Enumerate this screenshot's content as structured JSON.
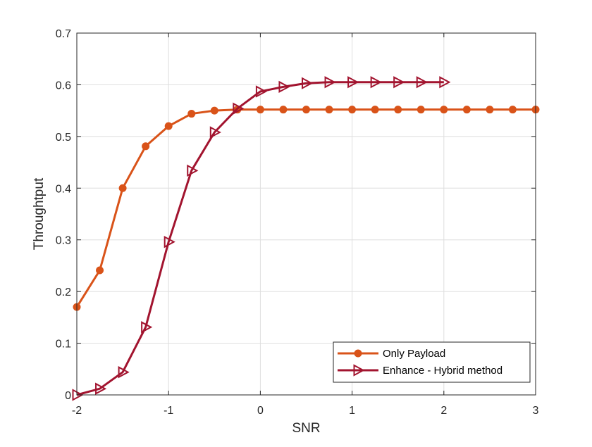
{
  "chart_data": {
    "type": "line",
    "title": "",
    "xlabel": "SNR",
    "ylabel": "Throughtput",
    "xlim": [
      -2,
      3
    ],
    "ylim": [
      0,
      0.7
    ],
    "xticks": [
      -2,
      -1,
      0,
      1,
      2,
      3
    ],
    "xtick_labels": [
      "-2",
      "-1",
      "0",
      "1",
      "2",
      "3"
    ],
    "yticks": [
      0,
      0.1,
      0.2,
      0.3,
      0.4,
      0.5,
      0.6,
      0.7
    ],
    "ytick_labels": [
      "0",
      "0.1",
      "0.2",
      "0.3",
      "0.4",
      "0.5",
      "0.6",
      "0.7"
    ],
    "grid": true,
    "legend_position": "bottom-right",
    "series": [
      {
        "name": "Only Payload",
        "color": "#D95319",
        "marker": "circle",
        "x": [
          -2,
          -1.75,
          -1.5,
          -1.25,
          -1,
          -0.75,
          -0.5,
          -0.25,
          0,
          0.25,
          0.5,
          0.75,
          1,
          1.25,
          1.5,
          1.75,
          2,
          2.25,
          2.5,
          2.75,
          3
        ],
        "y": [
          0.17,
          0.241,
          0.4,
          0.481,
          0.52,
          0.544,
          0.55,
          0.552,
          0.552,
          0.552,
          0.552,
          0.552,
          0.552,
          0.552,
          0.552,
          0.552,
          0.552,
          0.552,
          0.552,
          0.552,
          0.552
        ]
      },
      {
        "name": "Enhance - Hybrid method",
        "color": "#A2142F",
        "marker": "triangle-right",
        "x": [
          -2,
          -1.75,
          -1.5,
          -1.25,
          -1,
          -0.75,
          -0.5,
          -0.25,
          0,
          0.25,
          0.5,
          0.75,
          1,
          1.25,
          1.5,
          1.75,
          2
        ],
        "y": [
          0.0,
          0.012,
          0.044,
          0.131,
          0.296,
          0.434,
          0.508,
          0.554,
          0.587,
          0.596,
          0.603,
          0.605,
          0.605,
          0.605,
          0.605,
          0.605,
          0.605
        ]
      }
    ]
  }
}
